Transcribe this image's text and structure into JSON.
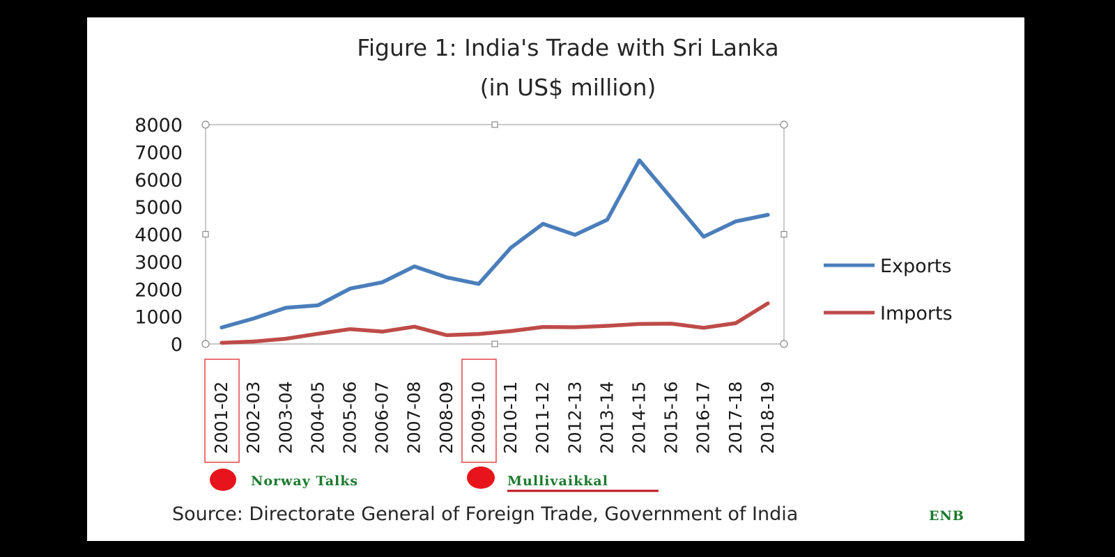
{
  "chart_data": {
    "type": "line",
    "title": "Figure 1: India's Trade with Sri Lanka",
    "subtitle": "(in US$ million)",
    "categories": [
      "2001-02",
      "2002-03",
      "2003-04",
      "2004-05",
      "2005-06",
      "2006-07",
      "2007-08",
      "2008-09",
      "2009-10",
      "2010-11",
      "2011-12",
      "2012-13",
      "2013-14",
      "2014-15",
      "2015-16",
      "2016-17",
      "2017-18",
      "2018-19"
    ],
    "series": [
      {
        "name": "Exports",
        "color": "#4a7ebb",
        "values": [
          600,
          930,
          1320,
          1410,
          2020,
          2250,
          2830,
          2430,
          2190,
          3510,
          4380,
          3980,
          4530,
          6700,
          5310,
          3910,
          4470,
          4710
        ]
      },
      {
        "name": "Imports",
        "color": "#be4b48",
        "values": [
          40,
          90,
          190,
          370,
          540,
          450,
          630,
          320,
          360,
          470,
          620,
          610,
          660,
          730,
          740,
          590,
          760,
          1480
        ]
      }
    ],
    "ylim": [
      0,
      8000
    ],
    "yticks": [
      "0",
      "1000",
      "2000",
      "3000",
      "4000",
      "5000",
      "6000",
      "7000",
      "8000"
    ],
    "xlabel": "",
    "ylabel": "",
    "legend": "right",
    "grid": false,
    "highlighted_categories": [
      "2001-02",
      "2009-10"
    ],
    "annotations": [
      {
        "category": "2001-02",
        "text": "Norway Talks",
        "marker_color": "#e8141b"
      },
      {
        "category": "2009-10",
        "text": "Mullivaikkal",
        "marker_color": "#e8141b",
        "underline_color": "#c0141b"
      }
    ]
  },
  "source": "Source: Directorate General of Foreign Trade, Government of India",
  "credit": "ENB"
}
